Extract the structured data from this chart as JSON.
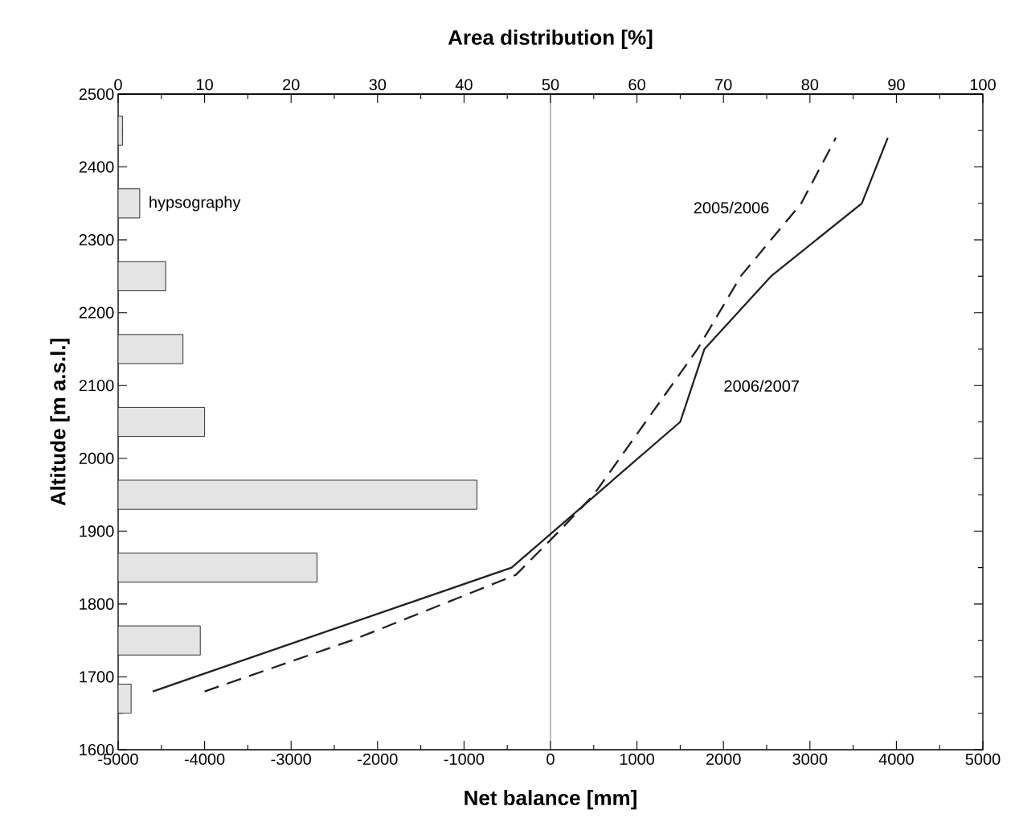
{
  "chart_data": {
    "type": "bar",
    "orientation": "horizontal",
    "xlabel": "Net balance [mm]",
    "x2label": "Area distribution [%]",
    "ylabel": "Altitude [m a.s.l.]",
    "xlim": [
      -5000,
      5000
    ],
    "xticks": [
      -5000,
      -4000,
      -3000,
      -2000,
      -1000,
      0,
      1000,
      2000,
      3000,
      4000,
      5000
    ],
    "x2lim": [
      0,
      100
    ],
    "x2ticks": [
      0,
      10,
      20,
      30,
      40,
      50,
      60,
      70,
      80,
      90,
      100
    ],
    "ylim": [
      1600,
      2500
    ],
    "yticks": [
      1600,
      1700,
      1800,
      1900,
      2000,
      2100,
      2200,
      2300,
      2400,
      2500
    ],
    "ref_lines": [
      {
        "axis": "x",
        "value": 0,
        "color": "#555555"
      }
    ],
    "series": [
      {
        "name": "hypsography",
        "axis": "x2",
        "color": "#e4e4e4",
        "x": [
          2450,
          2350,
          2250,
          2150,
          2050,
          1950,
          1850,
          1750,
          1670
        ],
        "values": [
          0.5,
          2.5,
          5.5,
          7.5,
          10,
          41.5,
          23,
          9.5,
          1.5
        ]
      },
      {
        "name": "2006/2007",
        "type": "line",
        "line_style": "solid",
        "color": "#231f20",
        "x": [
          1680,
          1850,
          2050,
          2150,
          2250,
          2350,
          2440
        ],
        "values": [
          -4600,
          -450,
          1500,
          1780,
          2550,
          3600,
          3900
        ]
      },
      {
        "name": "2005/2006",
        "type": "line",
        "line_style": "dashed",
        "color": "#231f20",
        "x": [
          1680,
          1750,
          1840,
          1900,
          1950,
          2050,
          2150,
          2250,
          2350,
          2440
        ],
        "values": [
          -4000,
          -2300,
          -400,
          100,
          500,
          1100,
          1700,
          2200,
          2900,
          3300
        ]
      }
    ]
  }
}
